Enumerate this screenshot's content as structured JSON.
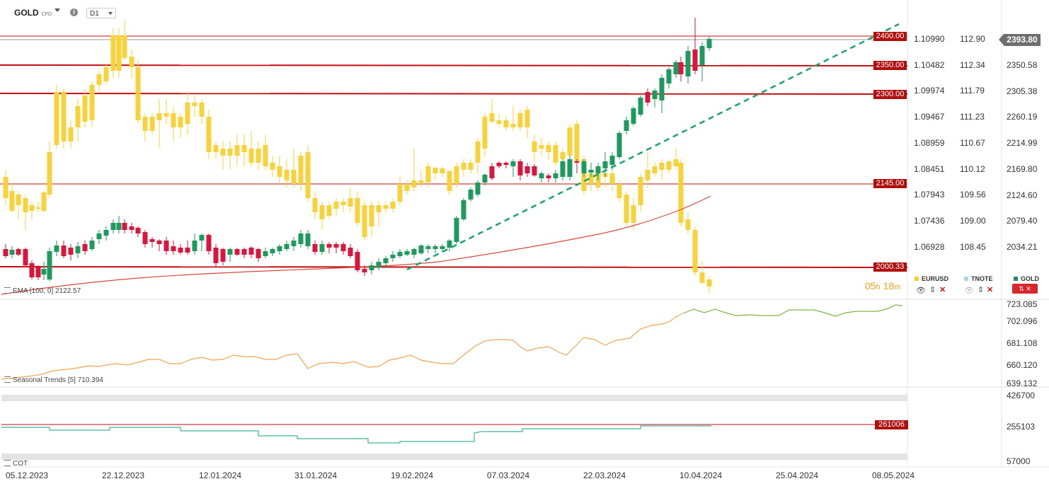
{
  "toolbar": {
    "symbol": "GOLD",
    "symbol_tag": "CFD",
    "timeframe": "D1"
  },
  "levels": [
    "2400.00",
    "2350.00",
    "2300.00",
    "2145.00",
    "2000.33"
  ],
  "eurusd_axis": [
    "1.10990",
    "1.10482",
    "1.09974",
    "1.09467",
    "1.08959",
    "1.08451",
    "1.07943",
    "1.07436",
    "1.06928"
  ],
  "tnote_axis": [
    "112.90",
    "112.34",
    "111.79",
    "111.23",
    "110.67",
    "110.12",
    "109.56",
    "109.00",
    "108.45"
  ],
  "gold_axis": [
    "2350.58",
    "2305.38",
    "2260.19",
    "2214.99",
    "2169.80",
    "2124.60",
    "2079.40",
    "2034.21"
  ],
  "current_price": "2393.80",
  "countdown": {
    "hours": "05",
    "h": "h",
    "minutes": "18",
    "m": "m"
  },
  "legend": {
    "eurusd": {
      "label": "EURUSD",
      "color": "#f5d02a"
    },
    "tnote": {
      "label": "TNOTE",
      "color": "#a8d8ef"
    },
    "gold": {
      "label": "GOLD",
      "color": "#1f8f5a"
    }
  },
  "ema_label": "EMA [100, 0]  2122.57",
  "seasonal": {
    "label": "Seasonal Trends [5]  710.394",
    "axis": [
      "723.085",
      "702.096",
      "681.108",
      "660.120",
      "639.132"
    ]
  },
  "cot": {
    "label": "COT",
    "axis": [
      "426700",
      "255103",
      "57000"
    ],
    "level": "261006"
  },
  "dates": [
    "05.12.2023",
    "22.12.2023",
    "12.01.2024",
    "31.01.2024",
    "19.02.2024",
    "07.03.2024",
    "22.03.2024",
    "10.04.2024",
    "25.04.2024",
    "08.05.2024"
  ],
  "colors": {
    "up": "#1f9a5e",
    "down": "#d9163d",
    "ghost": "#f7d23a",
    "level": "#c20e0e",
    "ema": "#d9463a",
    "trend": "#17a36b",
    "seasonal_a": "#f0a552",
    "seasonal_b": "#7ab648",
    "cot": "#3fb59b"
  }
}
